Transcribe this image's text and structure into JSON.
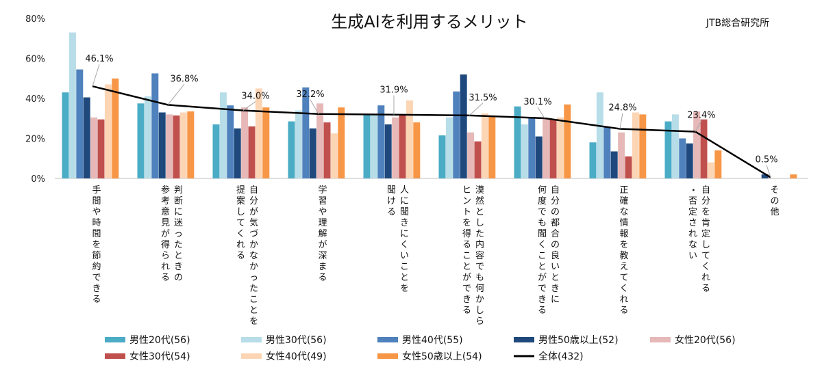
{
  "chart_data": {
    "type": "bar",
    "title": "生成AIを利用するメリット",
    "source": "JTB総合研究所",
    "ylim": [
      0,
      80
    ],
    "yticks": [
      "0%",
      "20%",
      "40%",
      "60%",
      "80%"
    ],
    "ytick_values": [
      0,
      20,
      40,
      60,
      80
    ],
    "categories": [
      [
        "手間や時間を節約できる"
      ],
      [
        "判断に迷ったときの",
        "参考意見が得られる"
      ],
      [
        "自分が気づかなかったことを",
        "提案してくれる"
      ],
      [
        "学習や理解が深まる"
      ],
      [
        "人に聞きにくいことを",
        "聞ける"
      ],
      [
        "漠然とした内容でも何かしら",
        "ヒントを得ることができる"
      ],
      [
        "自分の都合の良いときに",
        "何度でも聞くことができる"
      ],
      [
        "正確な情報を教えてくれる"
      ],
      [
        "自分を肯定してくれる",
        "・否定されない"
      ],
      [
        "その他"
      ]
    ],
    "series": [
      {
        "name": "男性20代(56)",
        "color": "#4BACC6",
        "values": [
          43,
          37.5,
          27,
          28.5,
          32,
          21.5,
          36,
          18,
          28.5,
          0
        ]
      },
      {
        "name": "男性30代(56)",
        "color": "#B7DDE8",
        "values": [
          73,
          41,
          43,
          34,
          32,
          30.5,
          27,
          43,
          32,
          0
        ]
      },
      {
        "name": "男性40代(55)",
        "color": "#4F81BD",
        "values": [
          54.5,
          52.5,
          36.5,
          45.5,
          36.5,
          43.5,
          30.5,
          25.5,
          20,
          0
        ]
      },
      {
        "name": "男性50歳以上(52)",
        "color": "#1F497D",
        "values": [
          40.5,
          33,
          25,
          25,
          27,
          52,
          21,
          13.5,
          17.5,
          2
        ]
      },
      {
        "name": "女性20代(56)",
        "color": "#E6B9B8",
        "values": [
          30.5,
          32,
          35.5,
          37.5,
          30.5,
          23,
          30,
          23,
          33.5,
          0
        ]
      },
      {
        "name": "女性30代(54)",
        "color": "#C0504D",
        "values": [
          29.5,
          31.5,
          26,
          28,
          32,
          18.5,
          29.5,
          11,
          29.5,
          0
        ]
      },
      {
        "name": "女性40代(49)",
        "color": "#FCD5B5",
        "values": [
          47,
          33,
          45,
          22.5,
          39,
          32.5,
          30.5,
          33,
          8,
          0
        ]
      },
      {
        "name": "女性50歳以上(54)",
        "color": "#F79646",
        "values": [
          50,
          33.5,
          35.5,
          35.5,
          28,
          31,
          37,
          32,
          14,
          2
        ]
      }
    ],
    "overall": {
      "name": "全体(432)",
      "color": "#000000",
      "values": [
        46.1,
        36.8,
        34.0,
        32.2,
        31.9,
        31.5,
        30.1,
        24.8,
        23.4,
        0.5
      ],
      "labels": [
        "46.1%",
        "36.8%",
        "34.0%",
        "32.2%",
        "31.9%",
        "31.5%",
        "30.1%",
        "24.8%",
        "23.4%",
        "0.5%"
      ]
    },
    "legend_placement": "bottom",
    "grid": false
  }
}
